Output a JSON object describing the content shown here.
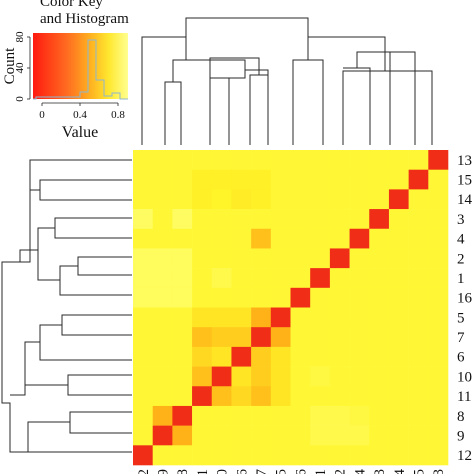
{
  "chart_data": {
    "type": "heatmap",
    "row_order": [
      "13",
      "15",
      "14",
      "3",
      "4",
      "2",
      "1",
      "16",
      "5",
      "7",
      "6",
      "10",
      "11",
      "8",
      "9",
      "12"
    ],
    "col_order": [
      "12",
      "9",
      "8",
      "11",
      "10",
      "6",
      "7",
      "5",
      "16",
      "1",
      "2",
      "4",
      "3",
      "14",
      "15",
      "13"
    ],
    "matrix": [
      [
        0.15,
        0.15,
        0.15,
        0.15,
        0.15,
        0.15,
        0.15,
        0.15,
        0.15,
        0.15,
        0.15,
        0.15,
        0.15,
        0.15,
        0.15,
        0.95
      ],
      [
        0.15,
        0.15,
        0.15,
        0.2,
        0.2,
        0.2,
        0.2,
        0.15,
        0.15,
        0.15,
        0.15,
        0.15,
        0.15,
        0.15,
        0.95,
        0.15
      ],
      [
        0.15,
        0.15,
        0.15,
        0.2,
        0.18,
        0.22,
        0.2,
        0.15,
        0.15,
        0.15,
        0.15,
        0.15,
        0.15,
        0.95,
        0.15,
        0.15
      ],
      [
        0.05,
        0.15,
        0.05,
        0.15,
        0.15,
        0.15,
        0.15,
        0.15,
        0.15,
        0.15,
        0.15,
        0.15,
        0.95,
        0.15,
        0.15,
        0.15
      ],
      [
        0.15,
        0.15,
        0.15,
        0.15,
        0.15,
        0.15,
        0.4,
        0.15,
        0.15,
        0.15,
        0.15,
        0.95,
        0.15,
        0.15,
        0.15,
        0.15
      ],
      [
        0.06,
        0.06,
        0.06,
        0.15,
        0.15,
        0.15,
        0.15,
        0.15,
        0.15,
        0.15,
        0.95,
        0.15,
        0.15,
        0.15,
        0.15,
        0.15
      ],
      [
        0.06,
        0.06,
        0.06,
        0.15,
        0.1,
        0.15,
        0.15,
        0.15,
        0.15,
        0.95,
        0.15,
        0.15,
        0.15,
        0.15,
        0.15,
        0.15
      ],
      [
        0.06,
        0.06,
        0.06,
        0.15,
        0.15,
        0.15,
        0.15,
        0.15,
        0.95,
        0.15,
        0.15,
        0.15,
        0.15,
        0.15,
        0.15,
        0.15
      ],
      [
        0.15,
        0.15,
        0.15,
        0.25,
        0.25,
        0.25,
        0.45,
        0.95,
        0.15,
        0.15,
        0.15,
        0.15,
        0.15,
        0.15,
        0.15,
        0.15
      ],
      [
        0.15,
        0.15,
        0.15,
        0.4,
        0.35,
        0.35,
        0.95,
        0.45,
        0.15,
        0.15,
        0.15,
        0.15,
        0.15,
        0.15,
        0.15,
        0.15
      ],
      [
        0.15,
        0.15,
        0.15,
        0.3,
        0.25,
        0.95,
        0.35,
        0.25,
        0.15,
        0.15,
        0.15,
        0.15,
        0.15,
        0.15,
        0.15,
        0.15
      ],
      [
        0.15,
        0.15,
        0.15,
        0.4,
        0.95,
        0.25,
        0.35,
        0.25,
        0.15,
        0.12,
        0.15,
        0.15,
        0.15,
        0.15,
        0.15,
        0.15
      ],
      [
        0.15,
        0.15,
        0.15,
        0.95,
        0.4,
        0.3,
        0.4,
        0.25,
        0.15,
        0.15,
        0.15,
        0.15,
        0.15,
        0.15,
        0.15,
        0.15
      ],
      [
        0.15,
        0.45,
        0.95,
        0.15,
        0.15,
        0.15,
        0.15,
        0.15,
        0.15,
        0.1,
        0.1,
        0.12,
        0.15,
        0.15,
        0.15,
        0.15
      ],
      [
        0.15,
        0.95,
        0.45,
        0.15,
        0.15,
        0.15,
        0.15,
        0.15,
        0.15,
        0.1,
        0.1,
        0.1,
        0.15,
        0.15,
        0.15,
        0.15
      ],
      [
        0.95,
        0.15,
        0.15,
        0.15,
        0.15,
        0.15,
        0.15,
        0.15,
        0.15,
        0.15,
        0.15,
        0.15,
        0.15,
        0.15,
        0.15,
        0.15
      ]
    ],
    "color_key": {
      "title_line1": "Color Key",
      "title_line2": "and Histogram",
      "ylabel": "Count",
      "xlabel": "Value",
      "xticks": [
        "0",
        "0.4",
        "0.8"
      ],
      "yticks": [
        "0",
        "40",
        "80"
      ],
      "value_range": [
        0,
        1
      ],
      "color_low": "#ff1a10",
      "color_mid": "#ffa500",
      "color_high": "#ffff70",
      "diagonal_color": "#ee2218"
    }
  }
}
